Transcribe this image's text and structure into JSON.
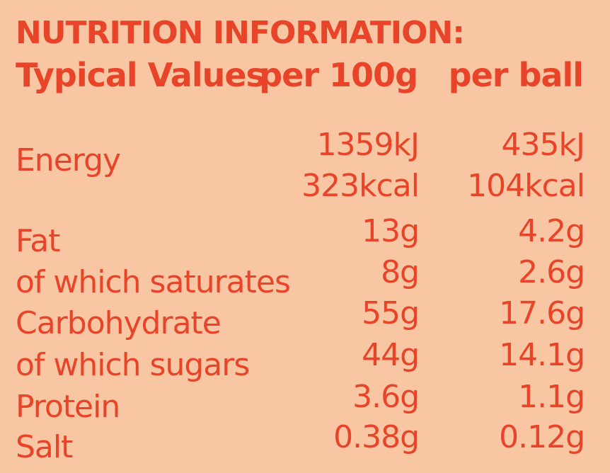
{
  "title": "NUTRITION INFORMATION:",
  "header": {
    "label": "Typical Values",
    "col1": "per 100g",
    "col2": "per ball"
  },
  "energy": {
    "label": "Energy",
    "kj_100g": "1359kJ",
    "kj_ball": "435kJ",
    "kcal_100g": "323kcal",
    "kcal_ball": "104kcal"
  },
  "rows": [
    {
      "label": "Fat",
      "per_100g": "13g",
      "per_ball": "4.2g"
    },
    {
      "label": "of which saturates",
      "per_100g": "8g",
      "per_ball": "2.6g"
    },
    {
      "label": "Carbohydrate",
      "per_100g": "55g",
      "per_ball": "17.6g"
    },
    {
      "label": "of which sugars",
      "per_100g": "44g",
      "per_ball": "14.1g"
    },
    {
      "label": "Protein",
      "per_100g": "3.6g",
      "per_ball": "1.1g"
    },
    {
      "label": "Salt",
      "per_100g": "0.38g",
      "per_ball": "0.12g"
    }
  ],
  "colors": {
    "background": "#f8c6a2",
    "text": "#e8442a"
  }
}
